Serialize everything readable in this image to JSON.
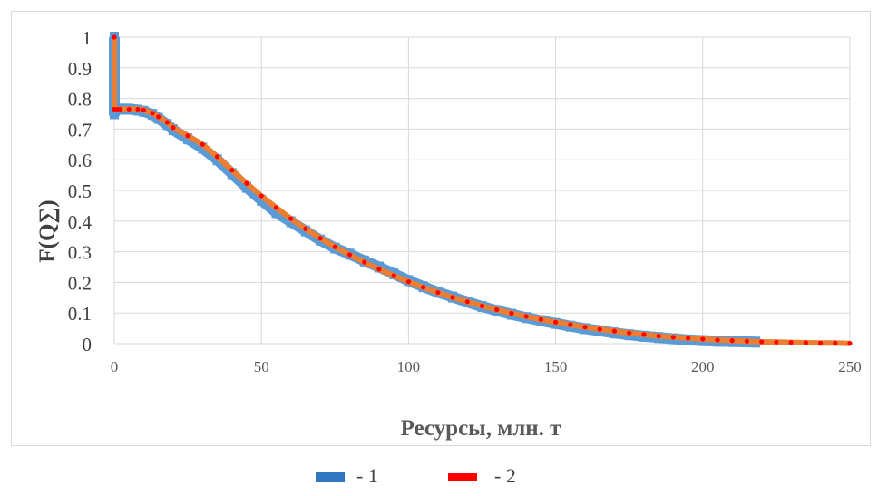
{
  "chart_data": {
    "type": "scatter",
    "xlabel": "Ресурсы, млн. т",
    "ylabel": "F(Q∑)",
    "xlim": [
      0,
      250
    ],
    "ylim": [
      0,
      1
    ],
    "x_ticks": [
      0,
      50,
      100,
      150,
      200,
      250
    ],
    "y_ticks": [
      0,
      0.1,
      0.2,
      0.3,
      0.4,
      0.5,
      0.6,
      0.7,
      0.8,
      0.9,
      1
    ],
    "x_tick_labels": [
      "0",
      "50",
      "100",
      "150",
      "200",
      "250"
    ],
    "y_tick_labels": [
      "0",
      "0.1",
      "0.2",
      "0.3",
      "0.4",
      "0.5",
      "0.6",
      "0.7",
      "0.8",
      "0.9",
      "1"
    ],
    "grid": true,
    "legend_position": "bottom",
    "series": [
      {
        "name": "- 1",
        "color": "#5b9bd5",
        "x": [
          0,
          0,
          1,
          2,
          5,
          8,
          10,
          13,
          15,
          18,
          20,
          25,
          30,
          35,
          40,
          45,
          50,
          55,
          60,
          65,
          70,
          75,
          80,
          85,
          90,
          95,
          100,
          105,
          110,
          115,
          120,
          125,
          130,
          135,
          140,
          145,
          150,
          155,
          160,
          165,
          170,
          175,
          180,
          185,
          190,
          195,
          200,
          205,
          210,
          215,
          218
        ],
        "y": [
          1,
          0.75,
          0.765,
          0.765,
          0.765,
          0.762,
          0.758,
          0.748,
          0.735,
          0.715,
          0.698,
          0.668,
          0.638,
          0.6,
          0.555,
          0.51,
          0.468,
          0.428,
          0.398,
          0.368,
          0.338,
          0.312,
          0.292,
          0.27,
          0.25,
          0.228,
          0.206,
          0.186,
          0.168,
          0.152,
          0.136,
          0.121,
          0.108,
          0.096,
          0.085,
          0.075,
          0.066,
          0.057,
          0.049,
          0.042,
          0.035,
          0.029,
          0.024,
          0.02,
          0.016,
          0.012,
          0.01,
          0.008,
          0.007,
          0.006,
          0.005
        ]
      },
      {
        "name": "- 2",
        "color": "#ff0000",
        "line_color": "#ed7d31",
        "x": [
          0,
          0,
          1,
          2,
          5,
          8,
          10,
          13,
          15,
          18,
          20,
          25,
          30,
          35,
          40,
          45,
          50,
          55,
          60,
          65,
          70,
          75,
          80,
          85,
          90,
          95,
          100,
          105,
          110,
          115,
          120,
          125,
          130,
          135,
          140,
          145,
          150,
          155,
          160,
          165,
          170,
          175,
          180,
          185,
          190,
          195,
          200,
          205,
          210,
          215,
          220,
          225,
          230,
          235,
          240,
          245,
          250
        ],
        "y": [
          1,
          0.765,
          0.765,
          0.765,
          0.765,
          0.765,
          0.762,
          0.752,
          0.74,
          0.722,
          0.705,
          0.678,
          0.65,
          0.61,
          0.566,
          0.523,
          0.482,
          0.444,
          0.408,
          0.375,
          0.344,
          0.316,
          0.29,
          0.266,
          0.243,
          0.222,
          0.202,
          0.184,
          0.167,
          0.151,
          0.137,
          0.123,
          0.111,
          0.099,
          0.089,
          0.079,
          0.07,
          0.062,
          0.054,
          0.047,
          0.041,
          0.035,
          0.03,
          0.025,
          0.021,
          0.018,
          0.015,
          0.012,
          0.01,
          0.008,
          0.006,
          0.005,
          0.004,
          0.003,
          0.002,
          0.002,
          0.001
        ]
      }
    ]
  }
}
